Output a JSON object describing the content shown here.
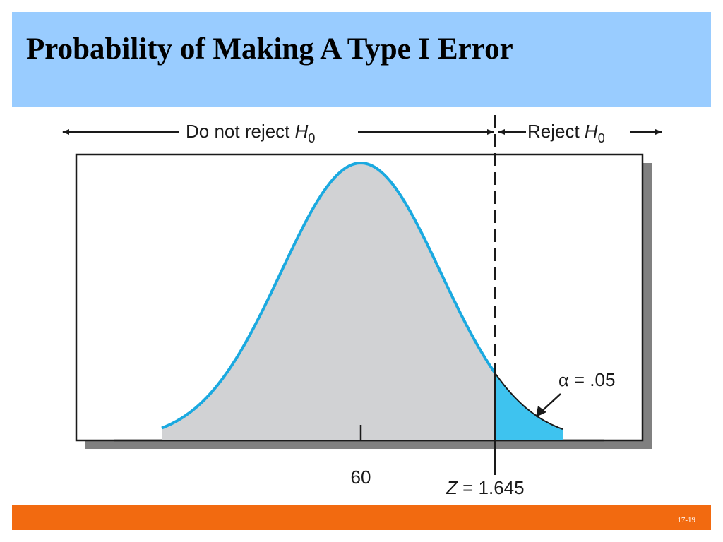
{
  "slide": {
    "title": "Probability of Making A Type I Error",
    "slide_number": "17-19"
  },
  "diagram": {
    "region_left_label": "Do not reject ",
    "region_right_label": "Reject ",
    "hypothesis_symbol": "H",
    "hypothesis_subscript": "0",
    "mean_label": "60",
    "critical_z_symbol": "Z",
    "critical_z_value": " = 1.645",
    "alpha_symbol": "α",
    "alpha_value": " = .05",
    "colors": {
      "curve": "#1aa9e0",
      "body_fill": "#d1d2d4",
      "tail_fill": "#3ec3ef",
      "frame_shadow": "#808080"
    }
  }
}
